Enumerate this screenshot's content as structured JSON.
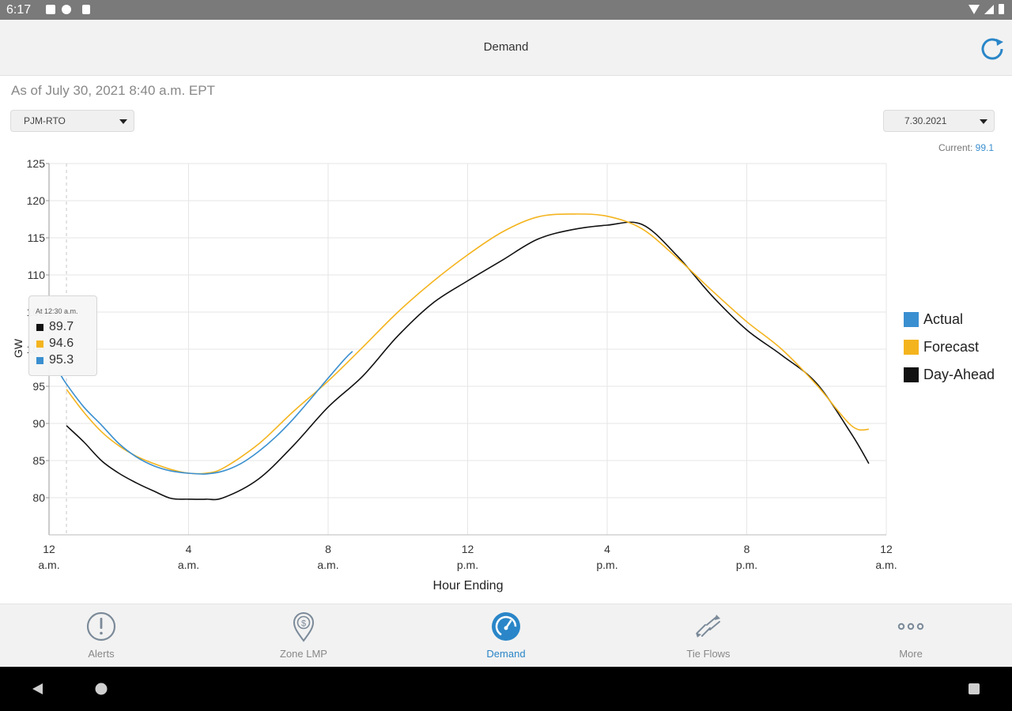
{
  "status_bar": {
    "time": "6:17"
  },
  "app_bar": {
    "title": "Demand"
  },
  "as_of": "As of July 30, 2021 8:40 a.m. EPT",
  "zone_select": {
    "value": "PJM-RTO"
  },
  "date_select": {
    "value": "7.30.2021"
  },
  "current": {
    "label": "Current:",
    "value": "99.1"
  },
  "tooltip": {
    "title": "At 12:30 a.m.",
    "rows": [
      {
        "series": "Day-Ahead",
        "value": "89.7"
      },
      {
        "series": "Forecast",
        "value": "94.6"
      },
      {
        "series": "Actual",
        "value": "95.3"
      }
    ]
  },
  "legend": {
    "items": [
      "Actual",
      "Forecast",
      "Day-Ahead"
    ]
  },
  "colors": {
    "actual": "#3a8fd0",
    "forecast": "#f4b41e",
    "day_ahead": "#111111",
    "accent": "#2a86c8"
  },
  "chart_data": {
    "type": "line",
    "xlabel": "Hour Ending",
    "ylabel": "GW",
    "xlim": [
      0,
      24
    ],
    "ylim": [
      75,
      125
    ],
    "yticks": [
      80,
      85,
      90,
      95,
      100,
      105,
      110,
      115,
      120,
      125
    ],
    "xticks": [
      {
        "h": 0,
        "l1": "12",
        "l2": "a.m."
      },
      {
        "h": 4,
        "l1": "4",
        "l2": "a.m."
      },
      {
        "h": 8,
        "l1": "8",
        "l2": "a.m."
      },
      {
        "h": 12,
        "l1": "12",
        "l2": "p.m."
      },
      {
        "h": 16,
        "l1": "4",
        "l2": "p.m."
      },
      {
        "h": 20,
        "l1": "8",
        "l2": "p.m."
      },
      {
        "h": 24,
        "l1": "12",
        "l2": "a.m."
      }
    ],
    "grid": true,
    "legend_position": "right",
    "cursor_hour": 0.5,
    "series": [
      {
        "name": "Actual",
        "color": "#3a8fd0",
        "x": [
          0.3,
          0.5,
          1,
          1.5,
          2,
          2.5,
          3,
          3.5,
          4,
          4.5,
          5,
          5.5,
          6,
          6.5,
          7,
          7.5,
          8,
          8.5,
          8.7
        ],
        "y": [
          96.8,
          95.3,
          92.2,
          89.8,
          87.3,
          85.5,
          84.3,
          83.6,
          83.3,
          83.2,
          83.6,
          84.6,
          86.2,
          88.2,
          90.6,
          93.3,
          96.1,
          98.8,
          99.7
        ]
      },
      {
        "name": "Forecast",
        "color": "#f4b41e",
        "x": [
          0.5,
          1,
          1.5,
          2,
          2.5,
          3,
          3.5,
          4,
          4.5,
          5,
          6,
          7,
          8,
          9,
          10,
          11,
          12,
          13,
          14,
          15,
          16,
          17,
          18,
          19,
          20,
          21,
          22,
          23,
          23.5
        ],
        "y": [
          94.6,
          91.5,
          88.9,
          87.0,
          85.6,
          84.6,
          83.8,
          83.3,
          83.3,
          84.0,
          87.2,
          91.6,
          95.7,
          100.3,
          105.0,
          109.1,
          112.7,
          115.8,
          117.8,
          118.2,
          117.9,
          116.2,
          112.3,
          107.9,
          103.7,
          100.0,
          95.2,
          89.7,
          89.2
        ]
      },
      {
        "name": "Day-Ahead",
        "color": "#111111",
        "x": [
          0.5,
          1,
          1.5,
          2,
          2.5,
          3,
          3.5,
          4,
          4.5,
          5,
          6,
          7,
          8,
          9,
          10,
          11,
          12,
          13,
          14,
          15,
          16,
          17,
          18,
          19,
          20,
          21,
          22,
          23,
          23.5
        ],
        "y": [
          89.7,
          87.5,
          85.0,
          83.3,
          82.0,
          80.9,
          79.9,
          79.8,
          79.8,
          80.0,
          82.5,
          87.0,
          92.2,
          96.4,
          101.8,
          106.2,
          109.2,
          112.0,
          114.8,
          116.1,
          116.7,
          116.8,
          112.6,
          107.2,
          102.6,
          99.2,
          95.4,
          88.6,
          84.6
        ]
      }
    ]
  },
  "bottom_nav": {
    "items": [
      {
        "label": "Alerts",
        "icon": "alert-icon",
        "active": false
      },
      {
        "label": "Zone LMP",
        "icon": "location-dollar-icon",
        "active": false
      },
      {
        "label": "Demand",
        "icon": "gauge-icon",
        "active": true
      },
      {
        "label": "Tie Flows",
        "icon": "tie-flows-icon",
        "active": false
      },
      {
        "label": "More",
        "icon": "more-icon",
        "active": false
      }
    ]
  }
}
